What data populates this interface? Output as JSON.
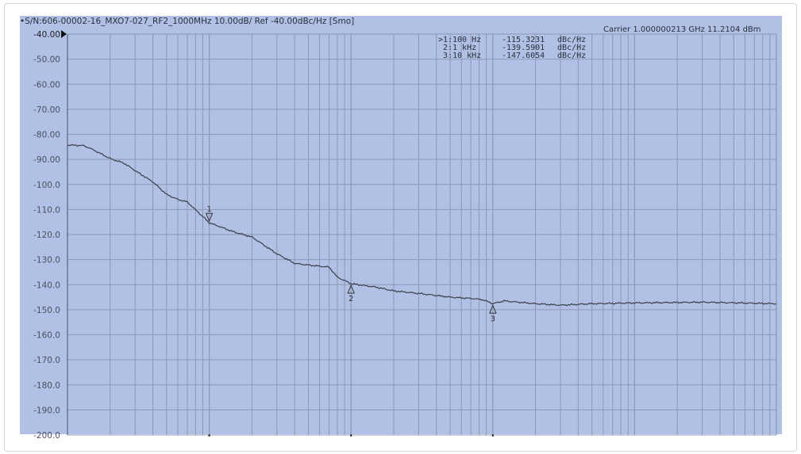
{
  "header": {
    "title": "•S/N:606-00002-16_MXO7-027_RF2_1000MHz 10.00dB/ Ref -40.00dBc/Hz [Smo]",
    "carrier": "Carrier 1.000000213 GHz    11.2104 dBm"
  },
  "markers": [
    {
      "label": ">1:",
      "freq": "100 Hz",
      "value": "-115.3231",
      "unit": "dBc/Hz",
      "id": "1"
    },
    {
      "label": " 2:",
      "freq": "1 kHz",
      "value": "-139.5901",
      "unit": "dBc/Hz",
      "id": "2"
    },
    {
      "label": " 3:",
      "freq": "10 kHz",
      "value": "-147.6054",
      "unit": "dBc/Hz",
      "id": "3"
    }
  ],
  "colors": {
    "background": "#b1c0e5",
    "grid": "#8c98b4",
    "trace": "#3a3f4a"
  },
  "chart_data": {
    "type": "line",
    "x_scale": "log",
    "xlim": [
      10,
      1000000
    ],
    "ylim": [
      -200,
      -40
    ],
    "grid": true,
    "yticks": [
      "-40.00",
      "-50.00",
      "-60.00",
      "-70.00",
      "-80.00",
      "-90.00",
      "-100.0",
      "-110.0",
      "-120.0",
      "-130.0",
      "-140.0",
      "-150.0",
      "-160.0",
      "-170.0",
      "-180.0",
      "-190.0",
      "-200.0"
    ],
    "series": [
      {
        "x": [
          10,
          13,
          15,
          20,
          25,
          30,
          40,
          50,
          60,
          70,
          100,
          150,
          200,
          300,
          400,
          500,
          700,
          800,
          1000,
          1500,
          2000,
          3000,
          5000,
          7000,
          8500,
          10000,
          12000,
          20000,
          30000,
          50000,
          100000,
          300000,
          1000000
        ],
        "y": [
          -84.3,
          -84.5,
          -86,
          -89.7,
          -91.5,
          -94.5,
          -99,
          -104,
          -106,
          -107,
          -115.3,
          -119,
          -121,
          -127.7,
          -131.5,
          -132.2,
          -133,
          -137,
          -139.6,
          -141,
          -142.5,
          -143.5,
          -145,
          -145.5,
          -146,
          -147.6,
          -146.5,
          -147.6,
          -148.2,
          -147.6,
          -147.3,
          -147,
          -147.6
        ]
      }
    ],
    "marker_points": [
      [
        100,
        -115.3231
      ],
      [
        1000,
        -139.5901
      ],
      [
        10000,
        -147.6054
      ]
    ]
  }
}
